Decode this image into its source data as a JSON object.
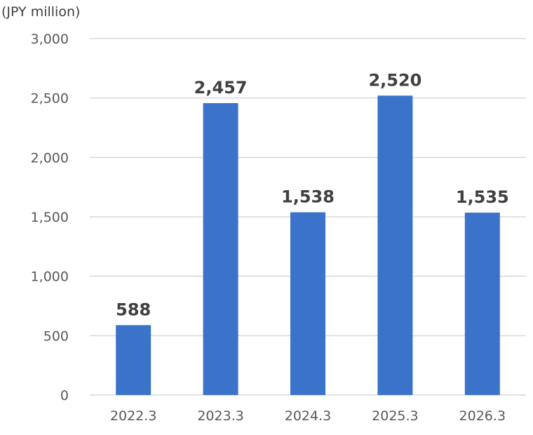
{
  "chart_data": {
    "type": "bar",
    "unit_label": "(JPY million)",
    "categories": [
      "2022.3",
      "2023.3",
      "2024.3",
      "2025.3",
      "2026.3"
    ],
    "values": [
      588,
      2457,
      1538,
      2520,
      1535
    ],
    "data_labels": [
      "588",
      "2,457",
      "1,538",
      "2,520",
      "1,535"
    ],
    "ylim": [
      0,
      3000
    ],
    "yticks": [
      0,
      500,
      1000,
      1500,
      2000,
      2500,
      3000
    ],
    "ytick_labels": [
      "0",
      "500",
      "1,000",
      "1,500",
      "2,000",
      "2,500",
      "3,000"
    ],
    "grid": true,
    "legend": "none",
    "bar_color": "#3a73c9",
    "grid_color": "#d9d9d9"
  }
}
